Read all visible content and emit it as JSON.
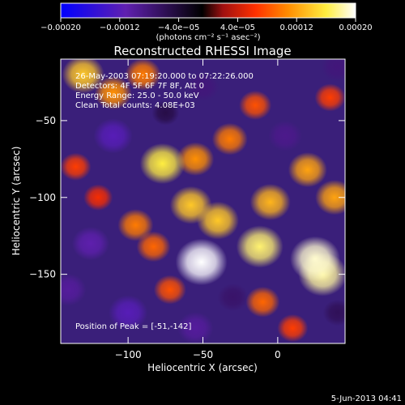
{
  "chart_data": {
    "type": "heatmap",
    "title": "Reconstructed RHESSI Image",
    "xlabel": "Heliocentric X (arcsec)",
    "ylabel": "Heliocentric Y (arcsec)",
    "xlim": [
      -145,
      45
    ],
    "ylim": [
      -195,
      -10
    ],
    "xticks": [
      -100,
      -50,
      0
    ],
    "xtick_labels": [
      "−100",
      "−50",
      "0"
    ],
    "yticks": [
      -50,
      -100,
      -150
    ],
    "ytick_labels": [
      "−50",
      "−100",
      "−150"
    ],
    "grid": false,
    "colorbar": {
      "range": [
        -0.0002,
        0.0002
      ],
      "tick_labels": [
        "−0.00020",
        "−0.00012",
        "−4.0e−05",
        "4.0e−05",
        "0.00012",
        "0.00020"
      ],
      "unit_label": "(photons cm⁻² s⁻¹ asec⁻²)",
      "colors": [
        "#0000ff",
        "#6020b0",
        "#000000",
        "#a01010",
        "#ff3000",
        "#ff8c00",
        "#ffee40",
        "#ffffff"
      ]
    },
    "annotations": [
      "26-May-2003 07:19:20.000 to 07:22:26.000",
      "Detectors: 4F 5F 6F 7F 8F, Att 0",
      "Energy Range: 25.0 - 50.0 keV",
      "Clean     Total counts: 4.08E+03"
    ],
    "peak_label": "Position of Peak = [-51,-142]",
    "peak": [
      -51,
      -142
    ],
    "blobs": [
      {
        "x": -51,
        "y": -142,
        "value": 0.0002
      },
      {
        "x": 25,
        "y": -140,
        "value": 0.00019
      },
      {
        "x": 30,
        "y": -150,
        "value": 0.00018
      },
      {
        "x": -12,
        "y": -132,
        "value": 0.00017
      },
      {
        "x": -77,
        "y": -78,
        "value": 0.00016
      },
      {
        "x": -40,
        "y": -115,
        "value": 0.00014
      },
      {
        "x": -58,
        "y": -105,
        "value": 0.00014
      },
      {
        "x": -5,
        "y": -103,
        "value": 0.00013
      },
      {
        "x": 20,
        "y": -82,
        "value": 0.00012
      },
      {
        "x": 38,
        "y": -100,
        "value": 0.00012
      },
      {
        "x": -55,
        "y": -75,
        "value": 0.00011
      },
      {
        "x": -32,
        "y": -62,
        "value": 0.0001
      },
      {
        "x": -95,
        "y": -118,
        "value": 0.0001
      },
      {
        "x": -83,
        "y": -132,
        "value": 9e-05
      },
      {
        "x": -72,
        "y": -160,
        "value": 8e-05
      },
      {
        "x": -10,
        "y": -168,
        "value": 9e-05
      },
      {
        "x": -130,
        "y": -20,
        "value": 0.00014
      },
      {
        "x": -110,
        "y": -32,
        "value": 0.00011
      },
      {
        "x": -90,
        "y": -20,
        "value": 0.0001
      },
      {
        "x": -15,
        "y": -40,
        "value": 8e-05
      },
      {
        "x": 35,
        "y": -35,
        "value": 7e-05
      },
      {
        "x": -135,
        "y": -80,
        "value": 7e-05
      },
      {
        "x": -120,
        "y": -100,
        "value": 6e-05
      },
      {
        "x": 10,
        "y": -185,
        "value": 7e-05
      },
      {
        "x": -110,
        "y": -60,
        "value": -0.00012
      },
      {
        "x": -125,
        "y": -130,
        "value": -0.00011
      },
      {
        "x": -100,
        "y": -175,
        "value": -0.00012
      },
      {
        "x": -55,
        "y": -185,
        "value": -0.0001
      },
      {
        "x": 5,
        "y": -60,
        "value": -9e-05
      },
      {
        "x": 40,
        "y": -15,
        "value": -8e-05
      },
      {
        "x": -50,
        "y": -28,
        "value": -8e-05
      },
      {
        "x": -30,
        "y": -165,
        "value": -7e-05
      },
      {
        "x": 40,
        "y": -175,
        "value": -6e-05
      },
      {
        "x": -140,
        "y": -160,
        "value": -0.0001
      },
      {
        "x": -75,
        "y": -45,
        "value": -5e-05
      }
    ]
  },
  "footer": {
    "timestamp": "5-Jun-2013 04:41"
  }
}
